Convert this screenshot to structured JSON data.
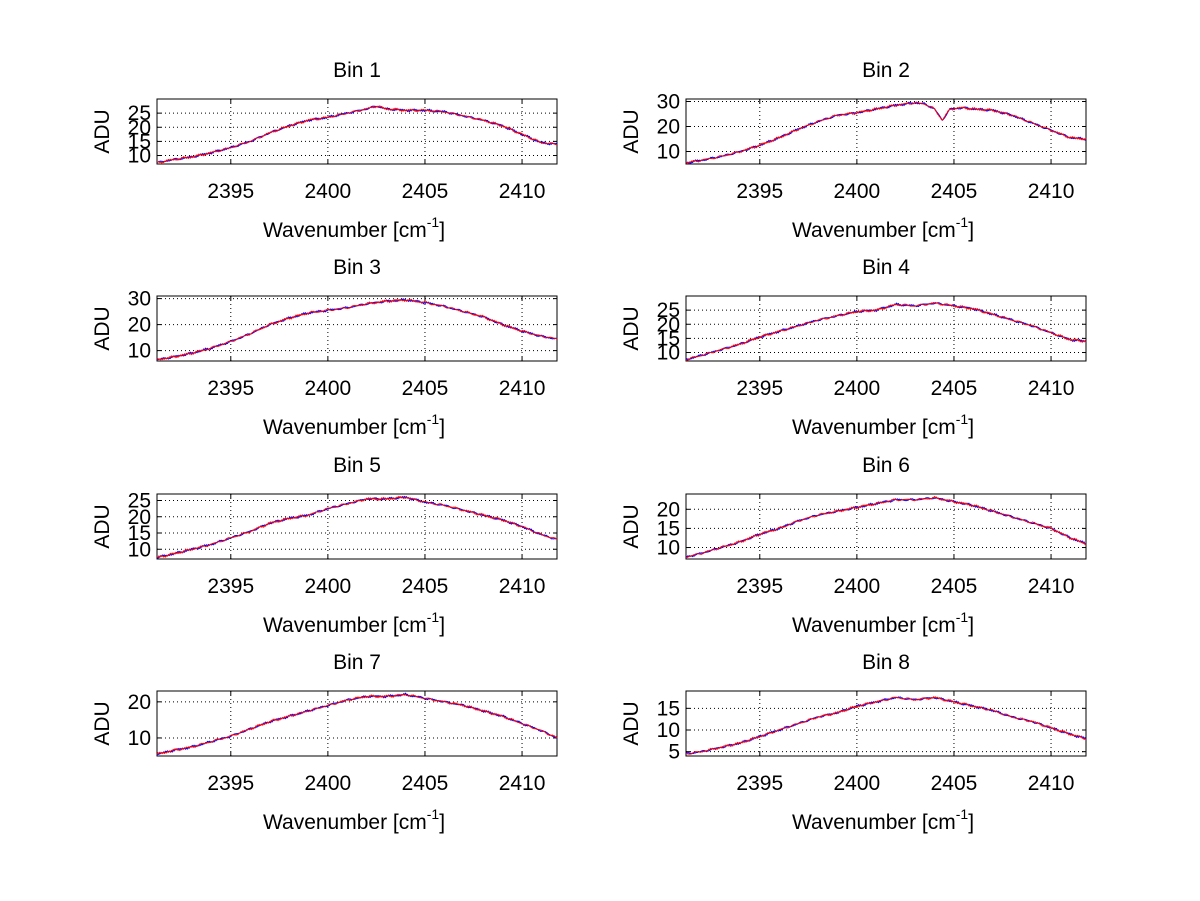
{
  "figure": {
    "background": "#ffffff",
    "line_colors": [
      "#0000ff",
      "#ff0000"
    ]
  },
  "chart_data": [
    {
      "type": "line",
      "title": "Bin 1",
      "xlabel": "Wavenumber [cm",
      "xlabel_sup": "-1",
      "xlabel_tail": "]",
      "ylabel": "ADU",
      "xlim": [
        2391.2,
        2411.8
      ],
      "ylim": [
        7,
        30
      ],
      "xticks": [
        2395,
        2400,
        2405,
        2410
      ],
      "yticks": [
        10,
        15,
        20,
        25
      ],
      "grid": true,
      "x": [
        2391.2,
        2392,
        2393,
        2394,
        2395,
        2396,
        2397,
        2398,
        2399,
        2400,
        2401,
        2402,
        2402.5,
        2403,
        2404,
        2405,
        2406,
        2407,
        2408,
        2409,
        2410,
        2411,
        2411.8
      ],
      "series": [
        {
          "values": [
            7.5,
            8.5,
            9.5,
            11,
            12.8,
            15,
            18,
            20.5,
            22.5,
            23.5,
            25,
            26.5,
            27.5,
            26.5,
            26,
            26,
            25.5,
            24,
            22.5,
            20.5,
            17.5,
            14.5,
            14
          ]
        }
      ]
    },
    {
      "type": "line",
      "title": "Bin 2",
      "xlabel": "Wavenumber [cm",
      "xlabel_sup": "-1",
      "xlabel_tail": "]",
      "ylabel": "ADU",
      "xlim": [
        2391.2,
        2411.8
      ],
      "ylim": [
        5,
        31
      ],
      "xticks": [
        2395,
        2400,
        2405,
        2410
      ],
      "yticks": [
        10,
        20,
        30
      ],
      "grid": true,
      "x": [
        2391.2,
        2392,
        2393,
        2394,
        2395,
        2396,
        2397,
        2398,
        2399,
        2400,
        2401,
        2402,
        2403,
        2403.5,
        2404,
        2404.4,
        2404.8,
        2405.5,
        2406,
        2407,
        2408,
        2409,
        2410,
        2411,
        2411.8
      ],
      "series": [
        {
          "values": [
            5.5,
            6.5,
            8,
            10,
            12.5,
            15.5,
            19,
            22,
            24.5,
            25.5,
            27,
            28.5,
            29.5,
            29,
            27,
            22.5,
            27,
            27.5,
            27,
            26.5,
            24.5,
            21.5,
            18.5,
            15.5,
            15
          ]
        }
      ]
    },
    {
      "type": "line",
      "title": "Bin 3",
      "xlabel": "Wavenumber [cm",
      "xlabel_sup": "-1",
      "xlabel_tail": "]",
      "ylabel": "ADU",
      "xlim": [
        2391.2,
        2411.8
      ],
      "ylim": [
        6,
        31
      ],
      "xticks": [
        2395,
        2400,
        2405,
        2410
      ],
      "yticks": [
        10,
        20,
        30
      ],
      "grid": true,
      "x": [
        2391.2,
        2392,
        2393,
        2394,
        2395,
        2396,
        2397,
        2398,
        2399,
        2400,
        2401,
        2402,
        2403,
        2404,
        2405,
        2406,
        2407,
        2408,
        2409,
        2410,
        2411,
        2411.8
      ],
      "series": [
        {
          "values": [
            6.5,
            7.5,
            9,
            11,
            13.5,
            16.5,
            20,
            22.5,
            24.5,
            25.5,
            26.5,
            28,
            29,
            29.5,
            28.5,
            27,
            25,
            23,
            20,
            17.5,
            15.5,
            14.5
          ]
        }
      ]
    },
    {
      "type": "line",
      "title": "Bin 4",
      "xlabel": "Wavenumber [cm",
      "xlabel_sup": "-1",
      "xlabel_tail": "]",
      "ylabel": "ADU",
      "xlim": [
        2391.2,
        2411.8
      ],
      "ylim": [
        7,
        30
      ],
      "xticks": [
        2395,
        2400,
        2405,
        2410
      ],
      "yticks": [
        10,
        15,
        20,
        25
      ],
      "grid": true,
      "x": [
        2391.2,
        2392,
        2393,
        2394,
        2395,
        2396,
        2397,
        2398,
        2399,
        2400,
        2401,
        2402,
        2403,
        2404,
        2405,
        2406,
        2407,
        2408,
        2409,
        2410,
        2411,
        2411.8
      ],
      "series": [
        {
          "values": [
            7.5,
            9,
            11,
            13,
            15.5,
            17.5,
            19.5,
            21.5,
            23,
            24.5,
            25,
            27,
            26.5,
            27.5,
            26.5,
            25.5,
            23.5,
            21.5,
            19.5,
            17,
            14.5,
            14
          ]
        }
      ]
    },
    {
      "type": "line",
      "title": "Bin 5",
      "xlabel": "Wavenumber [cm",
      "xlabel_sup": "-1",
      "xlabel_tail": "]",
      "ylabel": "ADU",
      "xlim": [
        2391.2,
        2411.8
      ],
      "ylim": [
        7,
        27
      ],
      "xticks": [
        2395,
        2400,
        2405,
        2410
      ],
      "yticks": [
        10,
        15,
        20,
        25
      ],
      "grid": true,
      "x": [
        2391.2,
        2392,
        2393,
        2394,
        2395,
        2396,
        2397,
        2398,
        2399,
        2400,
        2401,
        2402,
        2403,
        2404,
        2405,
        2406,
        2407,
        2408,
        2409,
        2410,
        2411,
        2411.8
      ],
      "series": [
        {
          "values": [
            7.5,
            8.5,
            10,
            11.5,
            13.5,
            15.5,
            18,
            19.5,
            20.5,
            22.5,
            24,
            25.5,
            25.5,
            26,
            24.5,
            23.5,
            22,
            20.5,
            19,
            17,
            14.5,
            13
          ]
        }
      ]
    },
    {
      "type": "line",
      "title": "Bin 6",
      "xlabel": "Wavenumber [cm",
      "xlabel_sup": "-1",
      "xlabel_tail": "]",
      "ylabel": "ADU",
      "xlim": [
        2391.2,
        2411.8
      ],
      "ylim": [
        7,
        24
      ],
      "xticks": [
        2395,
        2400,
        2405,
        2410
      ],
      "yticks": [
        10,
        15,
        20
      ],
      "grid": true,
      "x": [
        2391.2,
        2392,
        2393,
        2394,
        2395,
        2396,
        2397,
        2398,
        2399,
        2400,
        2401,
        2402,
        2403,
        2404,
        2405,
        2406,
        2407,
        2408,
        2409,
        2410,
        2411,
        2411.8
      ],
      "series": [
        {
          "values": [
            7.5,
            8.5,
            10,
            11.5,
            13.5,
            15,
            17,
            18.5,
            19.5,
            20.5,
            21.5,
            22.5,
            22.5,
            23,
            22,
            21,
            19.5,
            18,
            16.5,
            15,
            12.5,
            11
          ]
        }
      ]
    },
    {
      "type": "line",
      "title": "Bin 7",
      "xlabel": "Wavenumber [cm",
      "xlabel_sup": "-1",
      "xlabel_tail": "]",
      "ylabel": "ADU",
      "xlim": [
        2391.2,
        2411.8
      ],
      "ylim": [
        5,
        23
      ],
      "xticks": [
        2395,
        2400,
        2405,
        2410
      ],
      "yticks": [
        10,
        20
      ],
      "grid": true,
      "x": [
        2391.2,
        2392,
        2393,
        2394,
        2395,
        2396,
        2397,
        2398,
        2399,
        2400,
        2401,
        2402,
        2403,
        2404,
        2405,
        2406,
        2407,
        2408,
        2409,
        2410,
        2411,
        2411.8
      ],
      "series": [
        {
          "values": [
            5.5,
            6.5,
            7.5,
            9,
            10.5,
            12.5,
            14.5,
            16,
            17.5,
            19,
            20.5,
            21.5,
            21.5,
            22,
            21,
            20,
            19,
            17.5,
            16,
            14,
            12,
            10
          ]
        }
      ]
    },
    {
      "type": "line",
      "title": "Bin 8",
      "xlabel": "Wavenumber [cm",
      "xlabel_sup": "-1",
      "xlabel_tail": "]",
      "ylabel": "ADU",
      "xlim": [
        2391.2,
        2411.8
      ],
      "ylim": [
        4,
        19
      ],
      "xticks": [
        2395,
        2400,
        2405,
        2410
      ],
      "yticks": [
        5,
        10,
        15
      ],
      "grid": true,
      "x": [
        2391.2,
        2392,
        2393,
        2394,
        2395,
        2396,
        2397,
        2398,
        2399,
        2400,
        2401,
        2402,
        2403,
        2404,
        2405,
        2406,
        2407,
        2408,
        2409,
        2410,
        2411,
        2411.8
      ],
      "series": [
        {
          "values": [
            4.5,
            5,
            6,
            7,
            8.5,
            10,
            11.5,
            13,
            14,
            15.5,
            16.5,
            17.5,
            17,
            17.5,
            16.5,
            15.5,
            14.5,
            13,
            12,
            10.5,
            9,
            8
          ]
        }
      ]
    }
  ]
}
